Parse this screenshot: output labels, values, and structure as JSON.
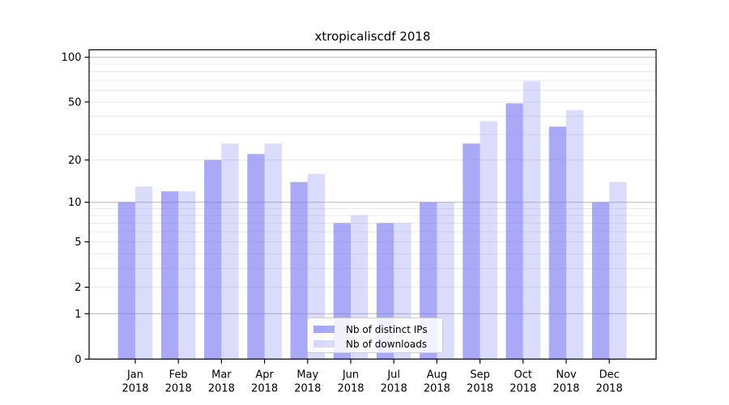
{
  "chart_data": {
    "type": "bar",
    "title": "xtropicaliscdf 2018",
    "categories": [
      "Jan",
      "Feb",
      "Mar",
      "Apr",
      "May",
      "Jun",
      "Jul",
      "Aug",
      "Sep",
      "Oct",
      "Nov",
      "Dec"
    ],
    "x_year_label": "2018",
    "series": [
      {
        "name": "Nb of distinct IPs",
        "color": "rgba(125,125,245,0.66)",
        "values": [
          10,
          12,
          20,
          22,
          14,
          7,
          7,
          10,
          26,
          49,
          34,
          10
        ]
      },
      {
        "name": "Nb of downloads",
        "color": "rgba(125,125,245,0.28)",
        "values": [
          13,
          12,
          26,
          26,
          16,
          8,
          7,
          10,
          37,
          69,
          44,
          14
        ]
      }
    ],
    "y_axis": {
      "scale": "log1p",
      "min": 0,
      "max": 100,
      "ticks": [
        {
          "value": 100,
          "label": "100"
        },
        {
          "value": 50,
          "label": "50"
        },
        {
          "value": 20,
          "label": "20"
        },
        {
          "value": 10,
          "label": "10"
        },
        {
          "value": 5,
          "label": "5"
        },
        {
          "value": 2,
          "label": "2"
        },
        {
          "value": 1,
          "label": "1"
        },
        {
          "value": 0,
          "label": "0"
        }
      ],
      "major_gridlines": [
        1,
        10,
        100
      ],
      "minor_gridlines": [
        2,
        3,
        4,
        5,
        6,
        7,
        8,
        9,
        20,
        30,
        40,
        50,
        60,
        70,
        80,
        90
      ]
    },
    "legend_position": "lower center",
    "grid": true,
    "style": {
      "grid_major_color": "#b6b6b6",
      "grid_minor_color": "#e7e7e7",
      "spine_color": "#000000",
      "text_color": "#000000"
    }
  }
}
